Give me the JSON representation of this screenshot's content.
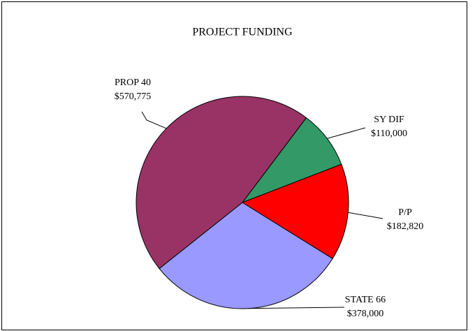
{
  "chart_data": {
    "type": "pie",
    "title": "PROJECT FUNDING",
    "categories": [
      "SY DIF",
      "P/P",
      "STATE 66",
      "PROP 40"
    ],
    "values": [
      110000,
      182820,
      378000,
      570775
    ],
    "value_labels": [
      "$110,000",
      "$182,820",
      "$378,000",
      "$570,775"
    ],
    "colors": [
      "#339966",
      "#ff0000",
      "#9999ff",
      "#993366"
    ]
  }
}
